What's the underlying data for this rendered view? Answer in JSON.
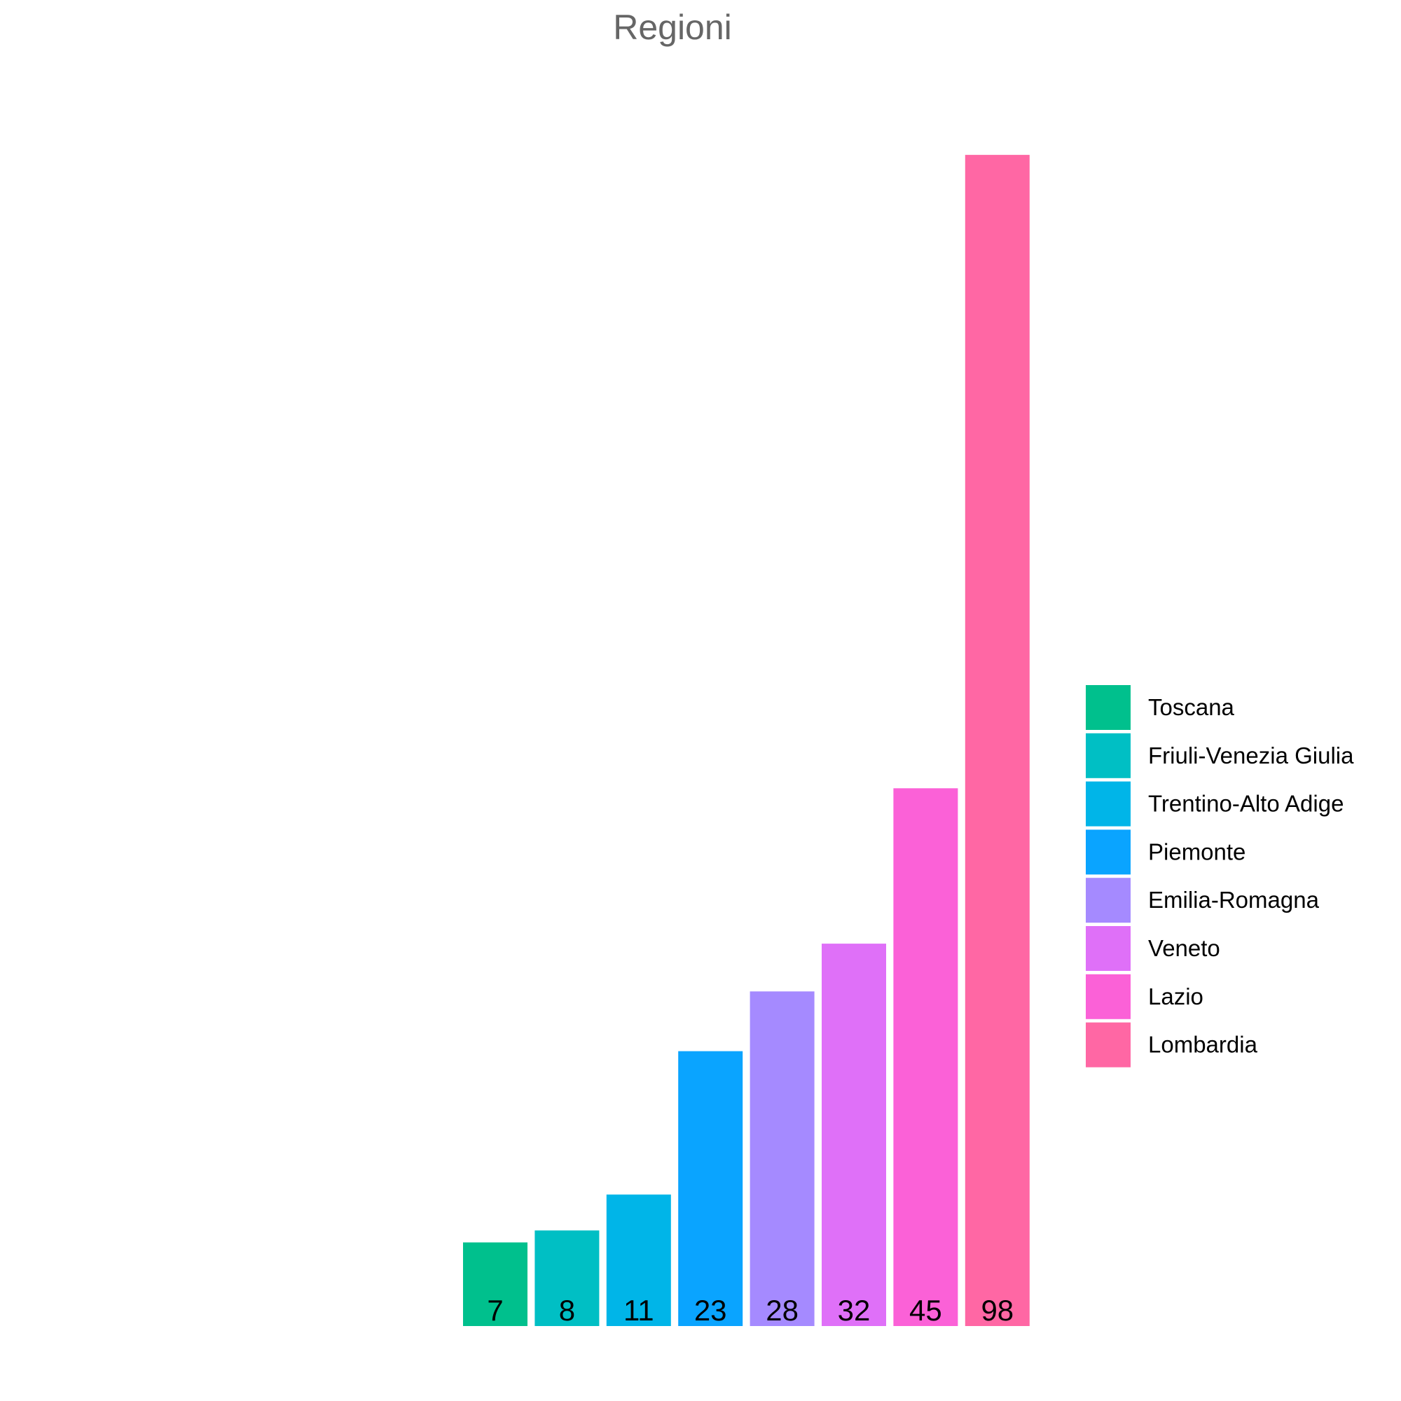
{
  "chart_data": {
    "type": "bar",
    "title": "Regioni",
    "xlabel": "",
    "ylabel": "",
    "ylim": [
      0,
      103
    ],
    "grid": false,
    "legend_position": "right",
    "categories": [
      "Toscana",
      "Friuli-Venezia Giulia",
      "Trentino-Alto Adige",
      "Piemonte",
      "Emilia-Romagna",
      "Veneto",
      "Lazio",
      "Lombardia"
    ],
    "values": [
      7,
      8,
      11,
      23,
      28,
      32,
      45,
      98
    ],
    "value_labels": [
      "7",
      "8",
      "11",
      "23",
      "28",
      "32",
      "45",
      "98"
    ],
    "colors": [
      "#00C08D",
      "#00BFC4",
      "#00B5E8",
      "#0AA4FF",
      "#A58AFF",
      "#DF70F8",
      "#FB61D7",
      "#FF67A4"
    ]
  }
}
